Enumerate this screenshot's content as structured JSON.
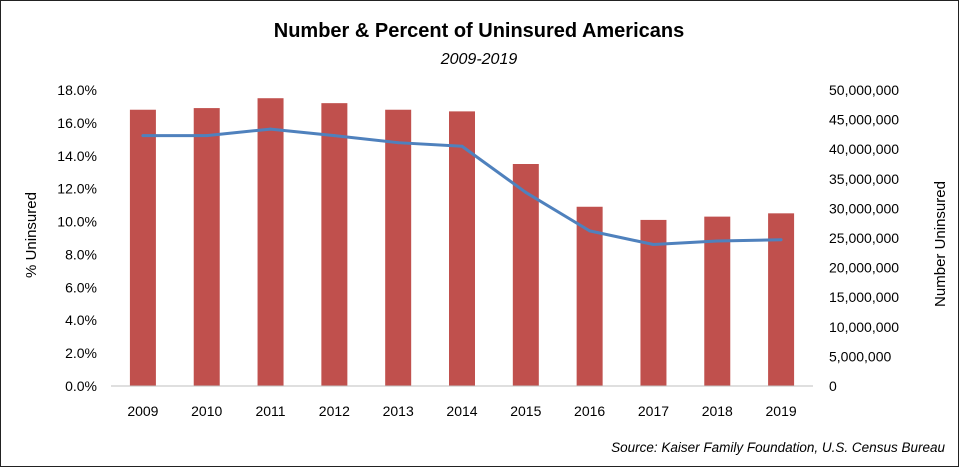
{
  "chart_data": {
    "type": "bar+line",
    "title": "Number & Percent of Uninsured Americans",
    "subtitle": "2009-2019",
    "source": "Source: Kaiser Family Foundation, U.S. Census Bureau",
    "categories": [
      "2009",
      "2010",
      "2011",
      "2012",
      "2013",
      "2014",
      "2015",
      "2016",
      "2017",
      "2018",
      "2019"
    ],
    "series": [
      {
        "name": "% Uninsured",
        "type": "bar",
        "axis": "left",
        "color": "#C0504D",
        "values": [
          16.8,
          16.9,
          17.5,
          17.2,
          16.8,
          16.7,
          13.5,
          10.9,
          10.1,
          10.3,
          10.5
        ]
      },
      {
        "name": "Number Uninsured",
        "type": "line",
        "axis": "right",
        "color": "#4F81BD",
        "values": [
          42300000,
          42300000,
          43400000,
          42300000,
          41100000,
          40500000,
          32700000,
          26200000,
          23900000,
          24500000,
          24700000
        ]
      }
    ],
    "ylabel_left": "% Uninsured",
    "ylabel_right": "Number Uninsured",
    "ylim_left": [
      0,
      18
    ],
    "ylim_right": [
      0,
      50000000
    ],
    "yticks_left": [
      "0.0%",
      "2.0%",
      "4.0%",
      "6.0%",
      "8.0%",
      "10.0%",
      "12.0%",
      "14.0%",
      "16.0%",
      "18.0%"
    ],
    "yticks_right": [
      "0",
      "5,000,000",
      "10,000,000",
      "15,000,000",
      "20,000,000",
      "25,000,000",
      "30,000,000",
      "35,000,000",
      "40,000,000",
      "45,000,000",
      "50,000,000"
    ],
    "grid": false,
    "legend": "none"
  }
}
